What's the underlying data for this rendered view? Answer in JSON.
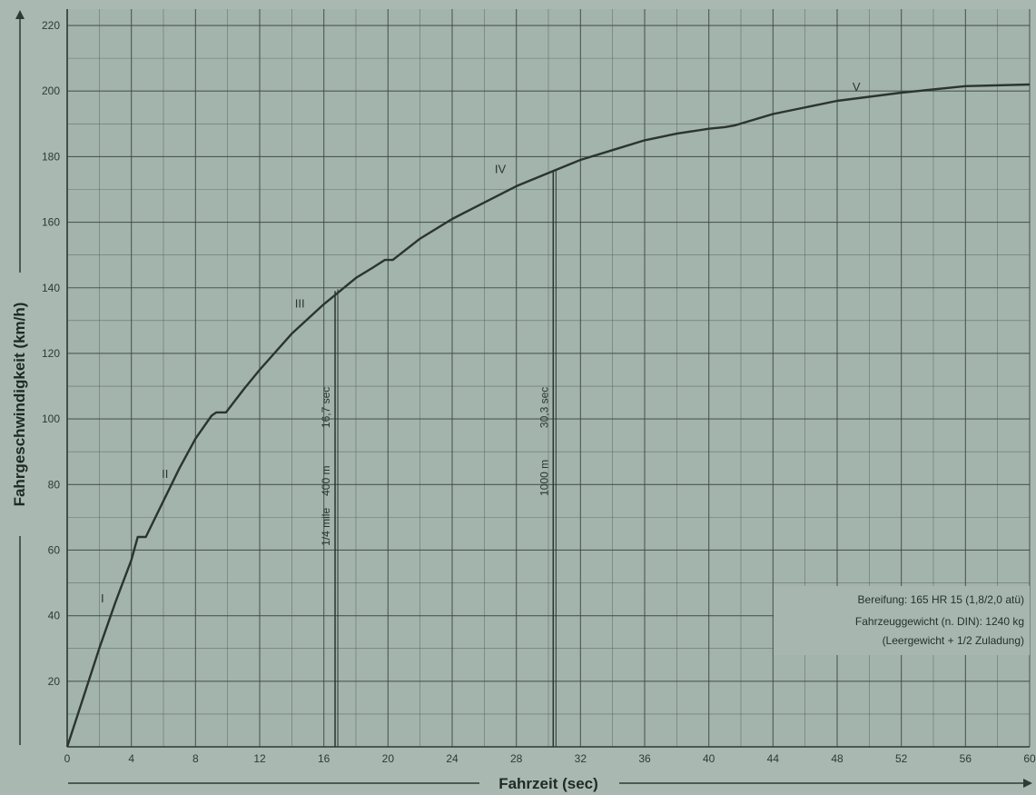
{
  "chart_data": {
    "type": "line",
    "xlabel": "Fahrzeit (sec)",
    "ylabel": "Fahrgeschwindigkeit (km/h)",
    "xlim": [
      0,
      60
    ],
    "ylim": [
      0,
      225
    ],
    "x_ticks": [
      0,
      4,
      8,
      12,
      16,
      20,
      24,
      28,
      32,
      36,
      40,
      44,
      48,
      52,
      56,
      60
    ],
    "y_ticks": [
      20,
      40,
      60,
      80,
      100,
      120,
      140,
      160,
      180,
      200,
      220
    ],
    "grid": true,
    "series": [
      {
        "x": [
          0,
          1,
          2,
          3,
          4,
          4.4,
          4.9,
          6,
          7,
          8,
          9,
          9.3,
          9.9,
          11,
          12,
          14,
          16,
          17,
          18,
          19,
          19.8,
          20.3,
          22,
          24,
          26,
          28,
          30,
          32,
          34,
          36,
          38,
          40,
          41,
          41.6,
          44,
          48,
          52,
          56,
          60
        ],
        "y": [
          0,
          15,
          30,
          44,
          57,
          64,
          64,
          75,
          85,
          94,
          101,
          102,
          102,
          109,
          115,
          126,
          135,
          139,
          143,
          146,
          148.5,
          148.5,
          155,
          161,
          166,
          171,
          175,
          179,
          182,
          185,
          187,
          188.5,
          189,
          189.5,
          193,
          197,
          199.5,
          201.5,
          202
        ]
      }
    ],
    "gear_labels": [
      {
        "text": "I",
        "x": 2.2,
        "y": 44
      },
      {
        "text": "II",
        "x": 6.1,
        "y": 82
      },
      {
        "text": "III",
        "x": 14.5,
        "y": 134
      },
      {
        "text": "IV",
        "x": 27,
        "y": 175
      },
      {
        "text": "V",
        "x": 49.2,
        "y": 200
      }
    ],
    "markers": [
      {
        "x": 16.7,
        "y": 139,
        "labels": [
          "16,7 sec",
          "400 m",
          "1/4 mile"
        ]
      },
      {
        "x": 30.3,
        "y": 175.5,
        "labels": [
          "30,3 sec",
          "1000 m"
        ]
      }
    ],
    "annotation": [
      "Bereifung: 165 HR 15 (1,8/2,0 atü)",
      "Fahrzeuggewicht (n. DIN): 1240 kg",
      "(Leergewicht + 1/2 Zuladung)"
    ]
  }
}
